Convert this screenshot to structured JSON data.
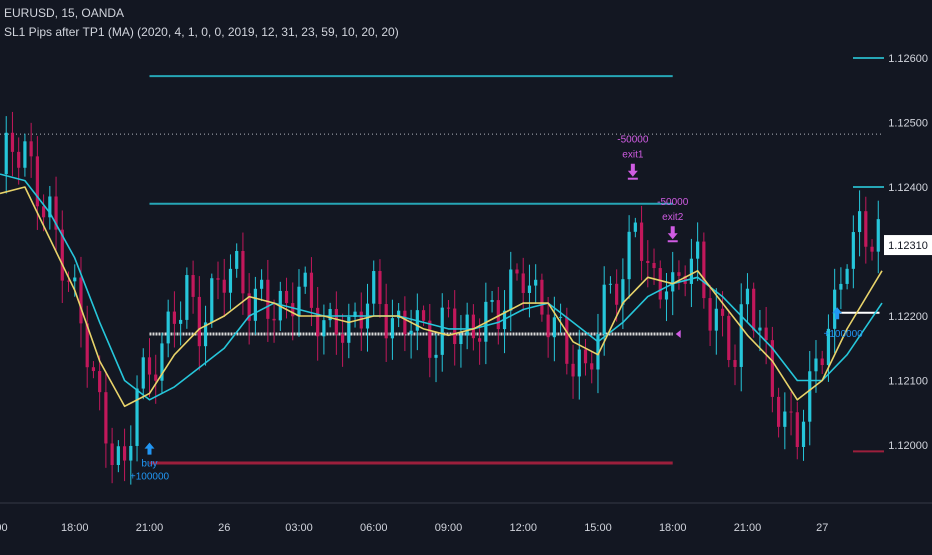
{
  "header": {
    "symbol": "EURUSD, 15, OANDA",
    "indicator": "SL1 Pips after TP1 (MA) (2020, 4, 1, 0, 0, 2019, 12, 31, 23, 59, 10, 20, 20)"
  },
  "colors": {
    "background": "#131722",
    "bull": "#26c6da",
    "bear": "#c2185b",
    "ma_fast": "#e8d36a",
    "ma_slow": "#26c6da",
    "tp_line": "#26a6b6",
    "sl_line": "#9c1f3c",
    "entry_line": "#d8d8d8",
    "buy_marker": "#2196f3",
    "exit_marker": "#d05ce3",
    "axis_text": "#d1d4dc",
    "price_label_bg": "#ffffff"
  },
  "chart_data": {
    "type": "candlestick",
    "title": "EURUSD, 15, OANDA",
    "x_tick_labels": [
      ":00",
      "18:00",
      "21:00",
      "26",
      "03:00",
      "06:00",
      "09:00",
      "12:00",
      "15:00",
      "18:00",
      "21:00",
      "27"
    ],
    "x_tick_hours": [
      15,
      18,
      21,
      24,
      27,
      30,
      33,
      36,
      39,
      42,
      45,
      48
    ],
    "x_range_hours": [
      15.0,
      50.4
    ],
    "y_tick_labels": [
      "1.12600",
      "1.12500",
      "1.12400",
      "1.12200",
      "1.12100",
      "1.12000"
    ],
    "y_tick_values": [
      1.126,
      1.125,
      1.124,
      1.122,
      1.121,
      1.12
    ],
    "ylim": [
      1.1191,
      1.1269
    ],
    "last_price_label": "1.12310",
    "last_price": 1.1231,
    "grid": false,
    "price_path": [
      [
        15.0,
        1.1242
      ],
      [
        15.5,
        1.1245
      ],
      [
        16.0,
        1.1246
      ],
      [
        16.5,
        1.1241
      ],
      [
        17.0,
        1.1237
      ],
      [
        17.5,
        1.1228
      ],
      [
        18.0,
        1.1221
      ],
      [
        18.5,
        1.1214
      ],
      [
        19.0,
        1.1206
      ],
      [
        19.5,
        1.1201
      ],
      [
        20.0,
        1.1197
      ],
      [
        20.5,
        1.1209
      ],
      [
        21.0,
        1.1209
      ],
      [
        21.5,
        1.1214
      ],
      [
        22.0,
        1.1221
      ],
      [
        22.5,
        1.1226
      ],
      [
        23.0,
        1.1219
      ],
      [
        23.5,
        1.1222
      ],
      [
        24.0,
        1.1225
      ],
      [
        24.5,
        1.1226
      ],
      [
        25.0,
        1.1223
      ],
      [
        25.5,
        1.1225
      ],
      [
        26.0,
        1.1222
      ],
      [
        26.5,
        1.122
      ],
      [
        27.0,
        1.1223
      ],
      [
        27.5,
        1.1221
      ],
      [
        28.0,
        1.1219
      ],
      [
        28.5,
        1.1221
      ],
      [
        29.0,
        1.1218
      ],
      [
        29.5,
        1.122
      ],
      [
        30.0,
        1.1222
      ],
      [
        30.5,
        1.1219
      ],
      [
        31.0,
        1.1219
      ],
      [
        31.5,
        1.1222
      ],
      [
        32.0,
        1.1218
      ],
      [
        32.5,
        1.1214
      ],
      [
        33.0,
        1.1219
      ],
      [
        33.5,
        1.1216
      ],
      [
        34.0,
        1.1219
      ],
      [
        34.5,
        1.1222
      ],
      [
        35.0,
        1.1221
      ],
      [
        35.5,
        1.1223
      ],
      [
        36.0,
        1.1225
      ],
      [
        36.5,
        1.1222
      ],
      [
        37.0,
        1.1221
      ],
      [
        37.5,
        1.1219
      ],
      [
        38.0,
        1.1213
      ],
      [
        38.5,
        1.121
      ],
      [
        39.0,
        1.1216
      ],
      [
        39.5,
        1.1225
      ],
      [
        40.0,
        1.1226
      ],
      [
        40.5,
        1.1238
      ],
      [
        41.0,
        1.1226
      ],
      [
        41.5,
        1.1224
      ],
      [
        42.0,
        1.1222
      ],
      [
        42.5,
        1.1228
      ],
      [
        43.0,
        1.123
      ],
      [
        43.5,
        1.1222
      ],
      [
        44.0,
        1.1218
      ],
      [
        44.5,
        1.1212
      ],
      [
        45.0,
        1.1222
      ],
      [
        45.5,
        1.1218
      ],
      [
        46.0,
        1.121
      ],
      [
        46.5,
        1.1205
      ],
      [
        47.0,
        1.1202
      ],
      [
        47.5,
        1.1207
      ],
      [
        48.0,
        1.1214
      ],
      [
        48.5,
        1.1221
      ],
      [
        49.0,
        1.1232
      ],
      [
        49.5,
        1.1235
      ],
      [
        50.0,
        1.1232
      ],
      [
        50.4,
        1.1231
      ]
    ],
    "ma_fast": [
      [
        15.0,
        1.1239
      ],
      [
        16.0,
        1.124
      ],
      [
        17.0,
        1.1232
      ],
      [
        18.0,
        1.1224
      ],
      [
        19.0,
        1.1213
      ],
      [
        20.0,
        1.1206
      ],
      [
        21.0,
        1.1208
      ],
      [
        22.0,
        1.1214
      ],
      [
        23.0,
        1.1218
      ],
      [
        24.0,
        1.122
      ],
      [
        25.0,
        1.1223
      ],
      [
        26.0,
        1.1222
      ],
      [
        27.0,
        1.122
      ],
      [
        28.0,
        1.122
      ],
      [
        29.0,
        1.1219
      ],
      [
        30.0,
        1.122
      ],
      [
        31.0,
        1.122
      ],
      [
        32.0,
        1.1218
      ],
      [
        33.0,
        1.1217
      ],
      [
        34.0,
        1.1218
      ],
      [
        35.0,
        1.122
      ],
      [
        36.0,
        1.1222
      ],
      [
        37.0,
        1.1222
      ],
      [
        38.0,
        1.1216
      ],
      [
        39.0,
        1.1214
      ],
      [
        40.0,
        1.1222
      ],
      [
        41.0,
        1.1226
      ],
      [
        42.0,
        1.1225
      ],
      [
        43.0,
        1.1227
      ],
      [
        44.0,
        1.1222
      ],
      [
        45.0,
        1.1217
      ],
      [
        46.0,
        1.1213
      ],
      [
        47.0,
        1.1207
      ],
      [
        48.0,
        1.121
      ],
      [
        49.0,
        1.1218
      ],
      [
        50.4,
        1.1227
      ]
    ],
    "ma_slow": [
      [
        15.0,
        1.1242
      ],
      [
        16.0,
        1.1241
      ],
      [
        17.0,
        1.1236
      ],
      [
        18.0,
        1.1229
      ],
      [
        19.0,
        1.1219
      ],
      [
        20.0,
        1.121
      ],
      [
        21.0,
        1.1207
      ],
      [
        22.0,
        1.1209
      ],
      [
        23.0,
        1.1212
      ],
      [
        24.0,
        1.1215
      ],
      [
        25.0,
        1.122
      ],
      [
        26.0,
        1.1222
      ],
      [
        27.0,
        1.1221
      ],
      [
        28.0,
        1.122
      ],
      [
        29.0,
        1.122
      ],
      [
        30.0,
        1.122
      ],
      [
        31.0,
        1.122
      ],
      [
        32.0,
        1.1219
      ],
      [
        33.0,
        1.1218
      ],
      [
        34.0,
        1.1218
      ],
      [
        35.0,
        1.1219
      ],
      [
        36.0,
        1.1221
      ],
      [
        37.0,
        1.1222
      ],
      [
        38.0,
        1.1219
      ],
      [
        39.0,
        1.1216
      ],
      [
        40.0,
        1.1219
      ],
      [
        41.0,
        1.1223
      ],
      [
        42.0,
        1.1225
      ],
      [
        43.0,
        1.1226
      ],
      [
        44.0,
        1.1223
      ],
      [
        45.0,
        1.1219
      ],
      [
        46.0,
        1.1215
      ],
      [
        47.0,
        1.121
      ],
      [
        48.0,
        1.121
      ],
      [
        49.0,
        1.1214
      ],
      [
        50.4,
        1.1222
      ]
    ],
    "levels": {
      "tp_long": {
        "price": 1.12572,
        "x_from": 21.0,
        "x_to": 42.0
      },
      "tp_short": {
        "price": 1.12374,
        "x_from": 21.0,
        "x_to": 42.0
      },
      "entry": {
        "price": 1.12172,
        "x_from": 21.0,
        "x_to": 42.0
      },
      "stop": {
        "price": 1.11972,
        "x_from": 21.0,
        "x_to": 42.0
      },
      "dotted_high": {
        "price": 1.12482
      },
      "current_entry": {
        "price": 1.12205,
        "x_from": 48.7,
        "x_to": 50.3
      }
    },
    "right_markers": [
      {
        "price": 1.126,
        "color": "#26a6b6"
      },
      {
        "price": 1.124,
        "color": "#26a6b6"
      },
      {
        "price": 1.1199,
        "color": "#9c1f3c"
      }
    ],
    "annotations": [
      {
        "type": "buy",
        "x": 21.0,
        "price": 1.11985,
        "label": "buy",
        "qty": "+100000"
      },
      {
        "type": "exit",
        "x": 40.4,
        "price": 1.12416,
        "label": "exit1",
        "qty": "-50000"
      },
      {
        "type": "exit",
        "x": 42.0,
        "price": 1.12319,
        "label": "exit2",
        "qty": "-50000"
      },
      {
        "type": "buy",
        "x": 48.6,
        "price": 1.12195,
        "label": "",
        "qty": "+100000"
      }
    ]
  }
}
